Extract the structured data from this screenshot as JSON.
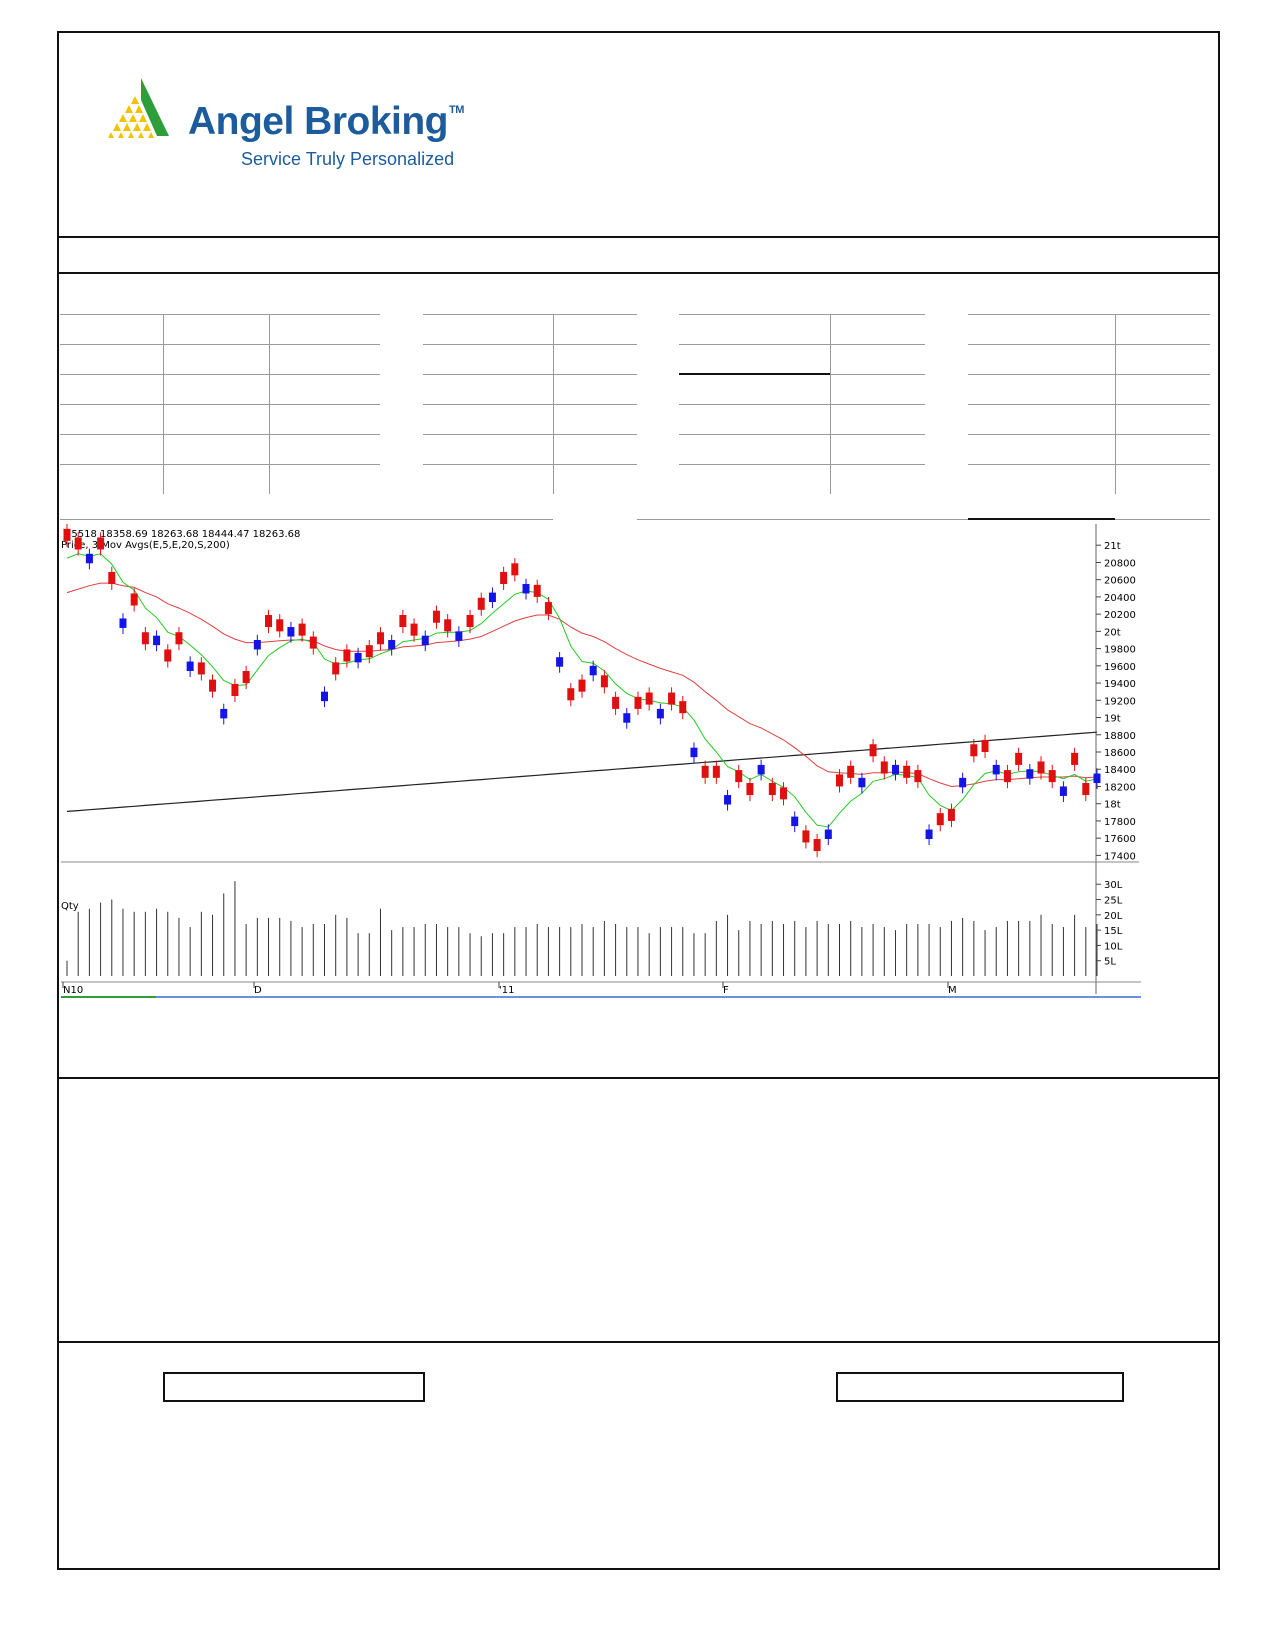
{
  "brand": {
    "name": "Angel Broking",
    "trademark": "TM",
    "tagline": "Service Truly Personalized",
    "colors": {
      "blue": "#1c5b9c",
      "green": "#2e9e3a",
      "yellow": "#f4c200"
    }
  },
  "chart_data": {
    "type": "candlestick",
    "header_values": "25518 18358.69 18263.68 18444.47 18263.68",
    "legend": "Price, 3 Mov Avgs(E,5,E,20,S,200)",
    "volume_label": "Qty",
    "date_labels": [
      "N10",
      "D",
      "'11",
      "F",
      "M"
    ],
    "price_ticks": [
      {
        "v": 21000,
        "label": "21t"
      },
      {
        "v": 20800,
        "label": "20800"
      },
      {
        "v": 20600,
        "label": "20600"
      },
      {
        "v": 20400,
        "label": "20400"
      },
      {
        "v": 20200,
        "label": "20200"
      },
      {
        "v": 20000,
        "label": "20t"
      },
      {
        "v": 19800,
        "label": "19800"
      },
      {
        "v": 19600,
        "label": "19600"
      },
      {
        "v": 19400,
        "label": "19400"
      },
      {
        "v": 19200,
        "label": "19200"
      },
      {
        "v": 19000,
        "label": "19t"
      },
      {
        "v": 18800,
        "label": "18800"
      },
      {
        "v": 18600,
        "label": "18600"
      },
      {
        "v": 18400,
        "label": "18400"
      },
      {
        "v": 18200,
        "label": "18200"
      },
      {
        "v": 18000,
        "label": "18t"
      },
      {
        "v": 17800,
        "label": "17800"
      },
      {
        "v": 17600,
        "label": "17600"
      },
      {
        "v": 17400,
        "label": "17400"
      }
    ],
    "volume_ticks": [
      {
        "v": 30,
        "label": "30L"
      },
      {
        "v": 25,
        "label": "25L"
      },
      {
        "v": 20,
        "label": "20L"
      },
      {
        "v": 15,
        "label": "15L"
      },
      {
        "v": 10,
        "label": "10L"
      },
      {
        "v": 5,
        "label": "5L"
      }
    ],
    "ylim": [
      17300,
      21130
    ],
    "vol_ylim": [
      0,
      34
    ],
    "closes": [
      21050,
      20950,
      20900,
      20950,
      20550,
      20150,
      20300,
      19850,
      19950,
      19650,
      19850,
      19650,
      19500,
      19300,
      19100,
      19250,
      19400,
      19900,
      20050,
      20000,
      20050,
      19950,
      19800,
      19300,
      19500,
      19650,
      19750,
      19700,
      19850,
      19900,
      20050,
      19950,
      19950,
      20100,
      20000,
      20000,
      20050,
      20250,
      20450,
      20550,
      20650,
      20550,
      20400,
      20200,
      19700,
      19200,
      19300,
      19600,
      19350,
      19100,
      19050,
      19100,
      19150,
      19100,
      19150,
      19050,
      18650,
      18300,
      18300,
      18100,
      18250,
      18100,
      18450,
      18100,
      18050,
      17850,
      17550,
      17450,
      17700,
      18200,
      18300,
      18300,
      18550,
      18350,
      18450,
      18300,
      18250,
      17700,
      17750,
      17800,
      18300,
      18550,
      18600,
      18450,
      18250,
      18450,
      18400,
      18350,
      18250,
      18200,
      18450,
      18100,
      18350
    ],
    "dir": "ddbddbddbddbddbddbddbddbddbddbddbddbddbddbddbddbddbddbddbddbddbddbddbddbddbddbddbddbddbddbddb",
    "volumes": [
      5,
      21,
      22,
      24,
      25,
      22,
      21,
      21,
      22,
      21,
      19,
      16,
      21,
      20,
      27,
      31,
      17,
      19,
      19,
      19,
      18,
      16,
      17,
      17,
      20,
      19,
      14,
      14,
      22,
      15,
      16,
      16,
      17,
      17,
      16,
      16,
      14,
      13,
      14,
      14,
      16,
      16,
      17,
      16,
      16,
      16,
      17,
      16,
      18,
      17,
      16,
      16,
      14,
      16,
      16,
      16,
      14,
      14,
      18,
      20,
      15,
      18,
      17,
      18,
      17,
      18,
      16,
      18,
      17,
      17,
      18,
      16,
      17,
      16,
      15,
      17,
      17,
      17,
      16,
      18,
      19,
      18,
      15,
      16,
      18,
      18,
      18,
      20,
      17,
      16,
      20,
      16,
      17
    ],
    "ema5": [
      20850,
      20900,
      20870,
      20900,
      20780,
      20570,
      20480,
      20270,
      20160,
      19990,
      19940,
      19840,
      19730,
      19590,
      19430,
      19370,
      19380,
      19550,
      19720,
      19810,
      19890,
      19910,
      19870,
      19680,
      19620,
      19630,
      19670,
      19680,
      19740,
      19790,
      19880,
      19900,
      19920,
      19980,
      19990,
      19990,
      20010,
      20090,
      20210,
      20320,
      20430,
      20470,
      20450,
      20370,
      20150,
      19830,
      19650,
      19630,
      19540,
      19390,
      19280,
      19220,
      19200,
      19170,
      19160,
      19120,
      18970,
      18750,
      18600,
      18430,
      18370,
      18280,
      18340,
      18260,
      18190,
      18080,
      17900,
      17750,
      17730,
      17890,
      18030,
      18120,
      18260,
      18290,
      18340,
      18330,
      18300,
      18100,
      17980,
      17920,
      18050,
      18220,
      18350,
      18380,
      18340,
      18370,
      18380,
      18370,
      18330,
      18290,
      18340,
      18260,
      18290
    ],
    "ema20": [
      20450,
      20490,
      20530,
      20560,
      20560,
      20530,
      20510,
      20450,
      20400,
      20320,
      20270,
      20210,
      20140,
      20060,
      19970,
      19910,
      19870,
      19870,
      19880,
      19890,
      19900,
      19900,
      19890,
      19830,
      19790,
      19770,
      19770,
      19770,
      19780,
      19790,
      19820,
      19830,
      19840,
      19870,
      19880,
      19890,
      19910,
      19940,
      20000,
      20060,
      20120,
      20160,
      20190,
      20190,
      20140,
      20050,
      19980,
      19940,
      19880,
      19800,
      19730,
      19670,
      19620,
      19570,
      19530,
      19490,
      19410,
      19300,
      19200,
      19090,
      19010,
      18930,
      18880,
      18810,
      18740,
      18650,
      18550,
      18440,
      18370,
      18360,
      18350,
      18340,
      18360,
      18360,
      18370,
      18360,
      18350,
      18290,
      18240,
      18200,
      18210,
      18230,
      18260,
      18280,
      18280,
      18290,
      18300,
      18310,
      18310,
      18310,
      18320,
      18300,
      18310
    ],
    "sma200": [
      17910,
      17920,
      17930,
      17940,
      17950,
      17960,
      17970,
      17980,
      17990,
      18000,
      18010,
      18020,
      18030,
      18040,
      18050,
      18060,
      18070,
      18080,
      18090,
      18100,
      18110,
      18120,
      18130,
      18140,
      18150,
      18160,
      18170,
      18180,
      18190,
      18200,
      18210,
      18220,
      18230,
      18240,
      18250,
      18260,
      18270,
      18280,
      18290,
      18300,
      18310,
      18320,
      18330,
      18340,
      18350,
      18360,
      18370,
      18380,
      18390,
      18400,
      18410,
      18420,
      18430,
      18440,
      18450,
      18460,
      18470,
      18480,
      18490,
      18500,
      18510,
      18520,
      18530,
      18540,
      18550,
      18560,
      18570,
      18580,
      18590,
      18600,
      18610,
      18620,
      18630,
      18640,
      18650,
      18660,
      18670,
      18680,
      18690,
      18700,
      18710,
      18720,
      18730,
      18740,
      18750,
      18760,
      18770,
      18780,
      18790,
      18800,
      18810,
      18820,
      18830
    ],
    "colors": {
      "up": "#1414e6",
      "down": "#e01010",
      "ema5": "#22cc22",
      "ema20": "#e04040",
      "sma200": "#222222",
      "axis_blue": "#3a6fd8",
      "axis_green": "#2e9e3a"
    }
  }
}
